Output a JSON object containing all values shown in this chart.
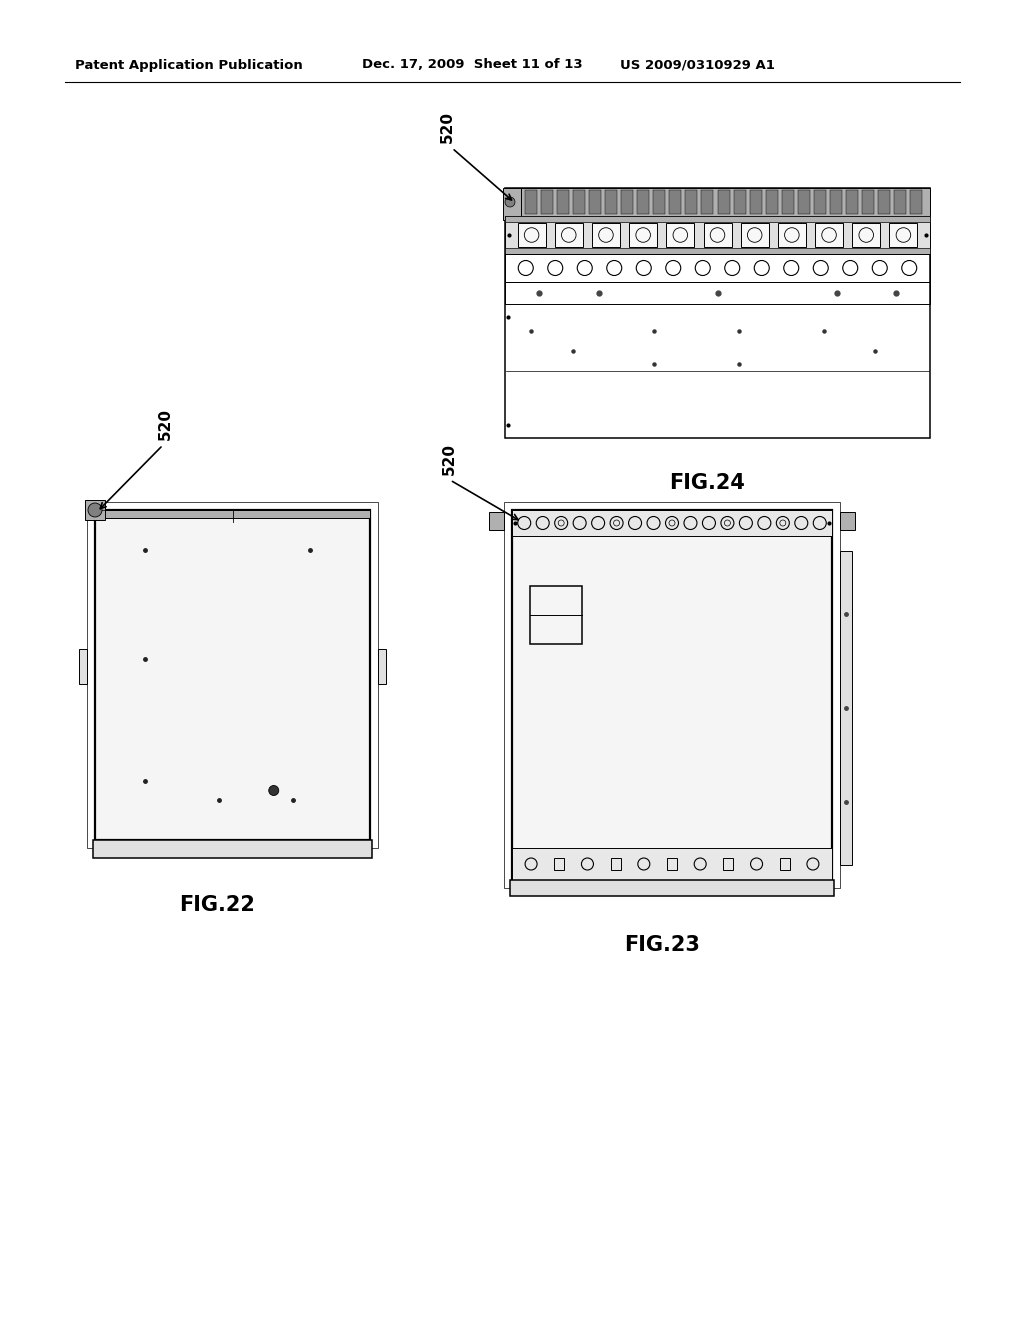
{
  "background_color": "#ffffff",
  "header_text": "Patent Application Publication",
  "header_date": "Dec. 17, 2009  Sheet 11 of 13",
  "header_patent": "US 2009/0310929 A1",
  "fig22_label": "FIG.22",
  "fig23_label": "FIG.23",
  "fig24_label": "FIG.24",
  "ref_label": "520",
  "lc": "#000000",
  "gray_light": "#e0e0e0",
  "gray_mid": "#b0b0b0",
  "gray_dark": "#808080"
}
